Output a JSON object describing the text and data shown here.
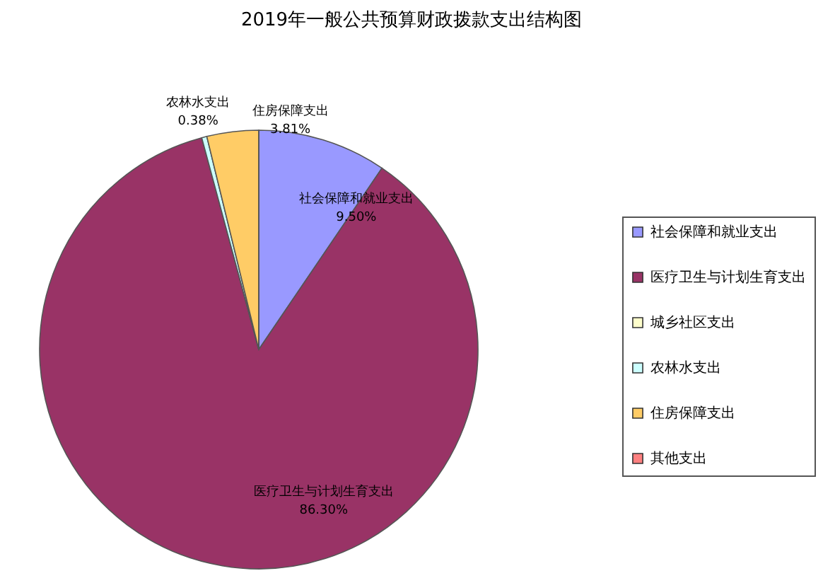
{
  "chart_data": {
    "type": "pie",
    "title": "2019年一般公共预算财政拨款支出结构图",
    "categories": [
      "社会保障和就业支出",
      "医疗卫生与计划生育支出",
      "城乡社区支出",
      "农林水支出",
      "住房保障支出",
      "其他支出"
    ],
    "values": [
      9.5,
      86.3,
      0,
      0.38,
      3.81,
      0
    ],
    "value_labels": [
      "9.50%",
      "86.30%",
      null,
      "0.38%",
      "3.81%",
      null
    ],
    "colors": [
      "#9999ff",
      "#993366",
      "#ffffcc",
      "#ccffff",
      "#ffcc66",
      "#ff8080"
    ],
    "legend": "right"
  }
}
